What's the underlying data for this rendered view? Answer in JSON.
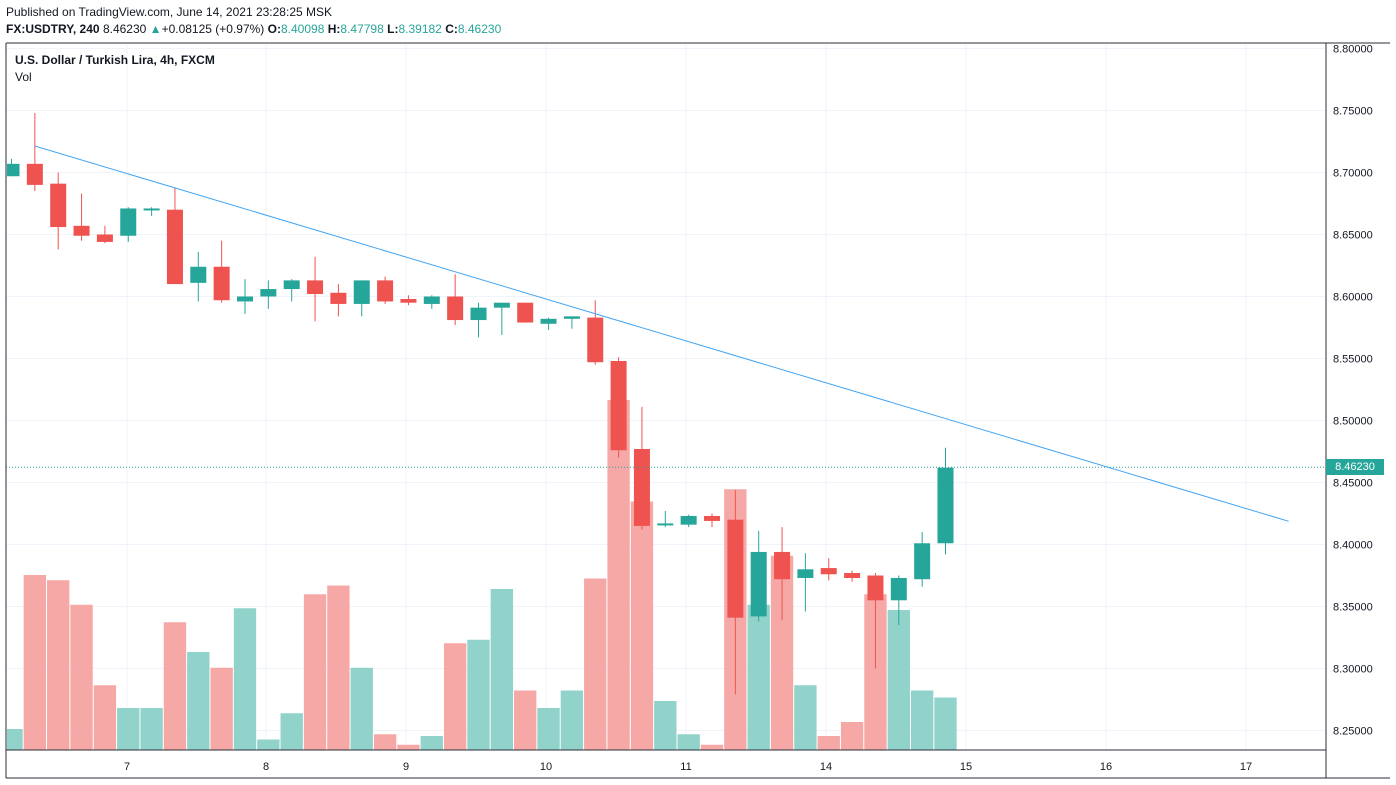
{
  "header": {
    "published": "Published on TradingView.com, June 14, 2021 23:28:25 MSK",
    "symbol": "FX:USDTRY, 240",
    "last": "8.46230",
    "change_arrow": "▲",
    "change": "+0.08125 (+0.97%)",
    "o_label": "O:",
    "o": "8.40098",
    "h_label": "H:",
    "h": "8.47798",
    "l_label": "L:",
    "l": "8.39182",
    "c_label": "C:",
    "c": "8.46230"
  },
  "legend": {
    "title": "U.S. Dollar / Turkish Lira, 4h, FXCM",
    "volume": "Vol"
  },
  "price_tag": "8.46230",
  "colors": {
    "up": "#26a69a",
    "down": "#ef5350",
    "up_vol": "#91d3cb",
    "down_vol": "#f6a8a6",
    "trendline": "#42a5f5",
    "grid": "#f0f3fa"
  },
  "chart_data": {
    "type": "candlestick",
    "x_tick_labels": [
      "7",
      "8",
      "9",
      "10",
      "11",
      "14",
      "15",
      "16",
      "17"
    ],
    "y_tick_labels": [
      "8.80000",
      "8.75000",
      "8.70000",
      "8.65000",
      "8.60000",
      "8.55000",
      "8.50000",
      "8.45000",
      "8.40000",
      "8.35000",
      "8.30000",
      "8.25000"
    ],
    "ylim": [
      8.23,
      8.8
    ],
    "last_price": 8.4623,
    "candles": [
      {
        "o": 8.697,
        "h": 8.711,
        "l": 8.697,
        "c": 8.707,
        "v": 0.12
      },
      {
        "o": 8.707,
        "h": 8.748,
        "l": 8.685,
        "c": 8.69,
        "v": 1.0
      },
      {
        "o": 8.691,
        "h": 8.7,
        "l": 8.638,
        "c": 8.656,
        "v": 0.97
      },
      {
        "o": 8.657,
        "h": 8.683,
        "l": 8.645,
        "c": 8.649,
        "v": 0.83
      },
      {
        "o": 8.65,
        "h": 8.657,
        "l": 8.643,
        "c": 8.644,
        "v": 0.37
      },
      {
        "o": 8.649,
        "h": 8.672,
        "l": 8.644,
        "c": 8.671,
        "v": 0.24
      },
      {
        "o": 8.67,
        "h": 8.672,
        "l": 8.665,
        "c": 8.671,
        "v": 0.24
      },
      {
        "o": 8.67,
        "h": 8.688,
        "l": 8.61,
        "c": 8.61,
        "v": 0.73
      },
      {
        "o": 8.611,
        "h": 8.636,
        "l": 8.596,
        "c": 8.624,
        "v": 0.56
      },
      {
        "o": 8.624,
        "h": 8.645,
        "l": 8.595,
        "c": 8.597,
        "v": 0.47
      },
      {
        "o": 8.596,
        "h": 8.614,
        "l": 8.586,
        "c": 8.6,
        "v": 0.81
      },
      {
        "o": 8.6,
        "h": 8.613,
        "l": 8.59,
        "c": 8.606,
        "v": 0.06
      },
      {
        "o": 8.606,
        "h": 8.614,
        "l": 8.596,
        "c": 8.613,
        "v": 0.21
      },
      {
        "o": 8.613,
        "h": 8.632,
        "l": 8.58,
        "c": 8.602,
        "v": 0.89
      },
      {
        "o": 8.603,
        "h": 8.61,
        "l": 8.584,
        "c": 8.594,
        "v": 0.94
      },
      {
        "o": 8.594,
        "h": 8.613,
        "l": 8.584,
        "c": 8.613,
        "v": 0.47
      },
      {
        "o": 8.613,
        "h": 8.616,
        "l": 8.594,
        "c": 8.596,
        "v": 0.09
      },
      {
        "o": 8.598,
        "h": 8.601,
        "l": 8.593,
        "c": 8.595,
        "v": 0.03
      },
      {
        "o": 8.594,
        "h": 8.601,
        "l": 8.59,
        "c": 8.6,
        "v": 0.08
      },
      {
        "o": 8.6,
        "h": 8.618,
        "l": 8.577,
        "c": 8.581,
        "v": 0.61
      },
      {
        "o": 8.581,
        "h": 8.595,
        "l": 8.567,
        "c": 8.591,
        "v": 0.63
      },
      {
        "o": 8.591,
        "h": 8.595,
        "l": 8.569,
        "c": 8.595,
        "v": 0.92
      },
      {
        "o": 8.595,
        "h": 8.595,
        "l": 8.579,
        "c": 8.579,
        "v": 0.34
      },
      {
        "o": 8.578,
        "h": 8.583,
        "l": 8.573,
        "c": 8.582,
        "v": 0.24
      },
      {
        "o": 8.582,
        "h": 8.584,
        "l": 8.574,
        "c": 8.584,
        "v": 0.34
      },
      {
        "o": 8.583,
        "h": 8.597,
        "l": 8.545,
        "c": 8.547,
        "v": 0.98
      },
      {
        "o": 8.548,
        "h": 8.551,
        "l": 8.47,
        "c": 8.476,
        "v": 2.0
      },
      {
        "o": 8.477,
        "h": 8.511,
        "l": 8.412,
        "c": 8.415,
        "v": 1.42
      },
      {
        "o": 8.417,
        "h": 8.427,
        "l": 8.414,
        "c": 8.417,
        "v": 0.28
      },
      {
        "o": 8.416,
        "h": 8.424,
        "l": 8.414,
        "c": 8.423,
        "v": 0.09
      },
      {
        "o": 8.423,
        "h": 8.425,
        "l": 8.414,
        "c": 8.419,
        "v": 0.03
      },
      {
        "o": 8.42,
        "h": 8.444,
        "l": 8.279,
        "c": 8.341,
        "v": 1.49
      },
      {
        "o": 8.342,
        "h": 8.411,
        "l": 8.338,
        "c": 8.394,
        "v": 0.83
      },
      {
        "o": 8.394,
        "h": 8.414,
        "l": 8.339,
        "c": 8.372,
        "v": 1.11
      },
      {
        "o": 8.373,
        "h": 8.393,
        "l": 8.346,
        "c": 8.38,
        "v": 0.37
      },
      {
        "o": 8.381,
        "h": 8.389,
        "l": 8.371,
        "c": 8.376,
        "v": 0.08
      },
      {
        "o": 8.377,
        "h": 8.379,
        "l": 8.37,
        "c": 8.373,
        "v": 0.16
      },
      {
        "o": 8.375,
        "h": 8.377,
        "l": 8.3,
        "c": 8.355,
        "v": 0.89
      },
      {
        "o": 8.355,
        "h": 8.375,
        "l": 8.335,
        "c": 8.373,
        "v": 0.8
      },
      {
        "o": 8.372,
        "h": 8.41,
        "l": 8.366,
        "c": 8.401,
        "v": 0.34
      },
      {
        "o": 8.401,
        "h": 8.478,
        "l": 8.392,
        "c": 8.462,
        "v": 0.3
      }
    ],
    "trendline": [
      {
        "bar": 1,
        "price": 8.7214
      },
      {
        "bar": 54.7,
        "price": 8.4187
      }
    ]
  }
}
